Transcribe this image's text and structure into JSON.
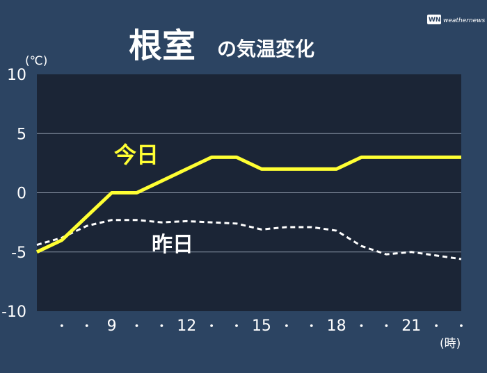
{
  "chart_data": {
    "type": "line",
    "title": "根室",
    "subtitle": "の気温変化",
    "ylabel": "(℃)",
    "xlabel": "(時)",
    "ylim": [
      -10,
      10
    ],
    "yticks": [
      "10",
      "5",
      "0",
      "-5",
      "-10"
    ],
    "xlim": [
      6,
      23
    ],
    "xtick_labels": [
      {
        "x": 6,
        "label": "・"
      },
      {
        "x": 7,
        "label": "・"
      },
      {
        "x": 8,
        "label": "9"
      },
      {
        "x": 9,
        "label": "・"
      },
      {
        "x": 10,
        "label": "・"
      },
      {
        "x": 11,
        "label": "12"
      },
      {
        "x": 12,
        "label": "・"
      },
      {
        "x": 13,
        "label": "・"
      },
      {
        "x": 14,
        "label": "15"
      },
      {
        "x": 15,
        "label": "・"
      },
      {
        "x": 16,
        "label": "・"
      },
      {
        "x": 17,
        "label": "18"
      },
      {
        "x": 18,
        "label": "・"
      },
      {
        "x": 19,
        "label": "・"
      },
      {
        "x": 20,
        "label": "21"
      },
      {
        "x": 21,
        "label": "・"
      },
      {
        "x": 22,
        "label": "・"
      }
    ],
    "grid": true,
    "series": [
      {
        "name": "今日",
        "color": "#ffff33",
        "style": "solid",
        "x": [
          6,
          7,
          8,
          9,
          10,
          11,
          12,
          13,
          14,
          15,
          16,
          17,
          18,
          19,
          20,
          21,
          22,
          23
        ],
        "values": [
          -5,
          -4,
          -2,
          0,
          0,
          1,
          2,
          3,
          3,
          2,
          2,
          2,
          2,
          3,
          3,
          3,
          3,
          3
        ]
      },
      {
        "name": "昨日",
        "color": "#ffffff",
        "style": "dashed",
        "x": [
          6,
          7,
          8,
          9,
          10,
          11,
          12,
          13,
          14,
          15,
          16,
          17,
          18,
          19,
          20,
          21,
          22,
          23
        ],
        "values": [
          -4.4,
          -3.8,
          -2.8,
          -2.3,
          -2.3,
          -2.5,
          -2.4,
          -2.5,
          -2.6,
          -3.1,
          -2.9,
          -2.9,
          -3.2,
          -4.5,
          -5.2,
          -5.0,
          -5.3,
          -5.6
        ]
      }
    ]
  },
  "logo": {
    "mark": "WN",
    "text": "weathernews"
  }
}
